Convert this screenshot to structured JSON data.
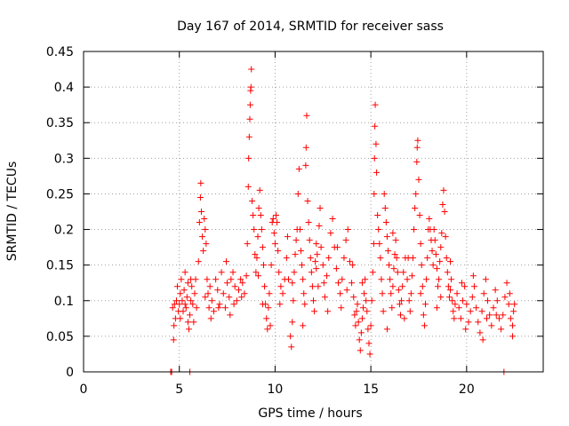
{
  "chart_data": {
    "type": "scatter",
    "title": "Day 167 of 2014, SRMTID for receiver sass",
    "xlabel": "GPS time / hours",
    "ylabel": "SRMTID / TECUs",
    "xlim": [
      0,
      24
    ],
    "ylim": [
      0,
      0.45
    ],
    "grid": true,
    "marker": "+",
    "color": "#ff0000",
    "x_ticks": [
      {
        "value": 0,
        "label": "0"
      },
      {
        "value": 5,
        "label": "5"
      },
      {
        "value": 10,
        "label": "10"
      },
      {
        "value": 15,
        "label": "15"
      },
      {
        "value": 20,
        "label": "20"
      }
    ],
    "y_ticks": [
      {
        "value": 0,
        "label": "0"
      },
      {
        "value": 0.05,
        "label": "0.05"
      },
      {
        "value": 0.1,
        "label": "0.1"
      },
      {
        "value": 0.15,
        "label": "0.15"
      },
      {
        "value": 0.2,
        "label": "0.2"
      },
      {
        "value": 0.25,
        "label": "0.25"
      },
      {
        "value": 0.3,
        "label": "0.3"
      },
      {
        "value": 0.35,
        "label": "0.35"
      },
      {
        "value": 0.4,
        "label": "0.4"
      },
      {
        "value": 0.45,
        "label": "0.45"
      }
    ],
    "points": [
      [
        4.55,
        0.0
      ],
      [
        4.6,
        0.0
      ],
      [
        5.55,
        0.0
      ],
      [
        21.95,
        0.0
      ],
      [
        4.65,
        0.09
      ],
      [
        4.7,
        0.045
      ],
      [
        4.72,
        0.065
      ],
      [
        4.75,
        0.095
      ],
      [
        4.8,
        0.075
      ],
      [
        4.85,
        0.1
      ],
      [
        4.9,
        0.12
      ],
      [
        4.95,
        0.085
      ],
      [
        5.0,
        0.095
      ],
      [
        5.05,
        0.11
      ],
      [
        5.1,
        0.13
      ],
      [
        5.15,
        0.1
      ],
      [
        5.2,
        0.085
      ],
      [
        5.25,
        0.115
      ],
      [
        5.3,
        0.14
      ],
      [
        5.35,
        0.09
      ],
      [
        5.4,
        0.105
      ],
      [
        5.45,
        0.125
      ],
      [
        5.5,
        0.06
      ],
      [
        5.55,
        0.08
      ],
      [
        5.6,
        0.1
      ],
      [
        5.65,
        0.12
      ],
      [
        5.7,
        0.095
      ],
      [
        5.75,
        0.07
      ],
      [
        5.8,
        0.11
      ],
      [
        5.85,
        0.13
      ],
      [
        5.9,
        0.09
      ],
      [
        6.0,
        0.155
      ],
      [
        6.05,
        0.21
      ],
      [
        6.1,
        0.245
      ],
      [
        6.12,
        0.265
      ],
      [
        6.15,
        0.225
      ],
      [
        6.2,
        0.19
      ],
      [
        6.25,
        0.17
      ],
      [
        6.3,
        0.215
      ],
      [
        6.35,
        0.2
      ],
      [
        6.4,
        0.18
      ],
      [
        6.45,
        0.13
      ],
      [
        6.5,
        0.11
      ],
      [
        6.55,
        0.09
      ],
      [
        6.6,
        0.12
      ],
      [
        6.7,
        0.1
      ],
      [
        6.8,
        0.085
      ],
      [
        6.9,
        0.13
      ],
      [
        7.0,
        0.115
      ],
      [
        7.1,
        0.095
      ],
      [
        7.2,
        0.14
      ],
      [
        7.3,
        0.11
      ],
      [
        7.4,
        0.09
      ],
      [
        7.5,
        0.125
      ],
      [
        7.6,
        0.105
      ],
      [
        7.7,
        0.13
      ],
      [
        7.8,
        0.14
      ],
      [
        7.9,
        0.12
      ],
      [
        8.0,
        0.1
      ],
      [
        8.1,
        0.115
      ],
      [
        8.2,
        0.13
      ],
      [
        8.3,
        0.125
      ],
      [
        8.4,
        0.11
      ],
      [
        8.5,
        0.135
      ],
      [
        8.55,
        0.18
      ],
      [
        8.6,
        0.26
      ],
      [
        8.62,
        0.3
      ],
      [
        8.65,
        0.33
      ],
      [
        8.68,
        0.355
      ],
      [
        8.7,
        0.375
      ],
      [
        8.72,
        0.395
      ],
      [
        8.74,
        0.4
      ],
      [
        8.76,
        0.425
      ],
      [
        8.8,
        0.24
      ],
      [
        8.85,
        0.22
      ],
      [
        8.9,
        0.2
      ],
      [
        8.95,
        0.165
      ],
      [
        9.0,
        0.14
      ],
      [
        9.05,
        0.16
      ],
      [
        9.1,
        0.19
      ],
      [
        9.15,
        0.23
      ],
      [
        9.2,
        0.255
      ],
      [
        9.25,
        0.22
      ],
      [
        9.3,
        0.2
      ],
      [
        9.35,
        0.175
      ],
      [
        9.4,
        0.15
      ],
      [
        9.45,
        0.12
      ],
      [
        9.5,
        0.095
      ],
      [
        9.55,
        0.075
      ],
      [
        9.6,
        0.06
      ],
      [
        9.65,
        0.09
      ],
      [
        9.7,
        0.11
      ],
      [
        9.8,
        0.15
      ],
      [
        9.85,
        0.21
      ],
      [
        9.9,
        0.215
      ],
      [
        9.95,
        0.195
      ],
      [
        10.0,
        0.18
      ],
      [
        10.05,
        0.22
      ],
      [
        10.1,
        0.21
      ],
      [
        10.15,
        0.17
      ],
      [
        10.2,
        0.14
      ],
      [
        10.3,
        0.12
      ],
      [
        10.4,
        0.11
      ],
      [
        10.5,
        0.13
      ],
      [
        10.6,
        0.16
      ],
      [
        10.7,
        0.13
      ],
      [
        10.8,
        0.05
      ],
      [
        10.85,
        0.035
      ],
      [
        10.9,
        0.07
      ],
      [
        10.95,
        0.1
      ],
      [
        11.0,
        0.14
      ],
      [
        11.05,
        0.165
      ],
      [
        11.1,
        0.185
      ],
      [
        11.15,
        0.2
      ],
      [
        11.2,
        0.25
      ],
      [
        11.25,
        0.285
      ],
      [
        11.3,
        0.2
      ],
      [
        11.35,
        0.17
      ],
      [
        11.4,
        0.15
      ],
      [
        11.45,
        0.13
      ],
      [
        11.5,
        0.11
      ],
      [
        11.55,
        0.095
      ],
      [
        11.6,
        0.29
      ],
      [
        11.62,
        0.315
      ],
      [
        11.65,
        0.36
      ],
      [
        11.7,
        0.24
      ],
      [
        11.75,
        0.21
      ],
      [
        11.8,
        0.185
      ],
      [
        11.85,
        0.16
      ],
      [
        11.9,
        0.14
      ],
      [
        11.95,
        0.12
      ],
      [
        12.0,
        0.1
      ],
      [
        12.05,
        0.085
      ],
      [
        12.1,
        0.155
      ],
      [
        12.15,
        0.18
      ],
      [
        12.2,
        0.165
      ],
      [
        12.3,
        0.205
      ],
      [
        12.35,
        0.23
      ],
      [
        12.4,
        0.175
      ],
      [
        12.5,
        0.15
      ],
      [
        12.55,
        0.125
      ],
      [
        12.6,
        0.105
      ],
      [
        12.7,
        0.135
      ],
      [
        12.8,
        0.16
      ],
      [
        12.9,
        0.195
      ],
      [
        13.0,
        0.215
      ],
      [
        13.1,
        0.175
      ],
      [
        13.2,
        0.145
      ],
      [
        13.3,
        0.125
      ],
      [
        13.4,
        0.11
      ],
      [
        13.5,
        0.13
      ],
      [
        13.6,
        0.16
      ],
      [
        13.7,
        0.185
      ],
      [
        13.8,
        0.2
      ],
      [
        13.9,
        0.155
      ],
      [
        14.0,
        0.125
      ],
      [
        14.1,
        0.105
      ],
      [
        14.15,
        0.08
      ],
      [
        14.2,
        0.065
      ],
      [
        14.25,
        0.085
      ],
      [
        14.3,
        0.095
      ],
      [
        14.35,
        0.07
      ],
      [
        14.4,
        0.045
      ],
      [
        14.45,
        0.03
      ],
      [
        14.5,
        0.055
      ],
      [
        14.55,
        0.075
      ],
      [
        14.6,
        0.09
      ],
      [
        14.65,
        0.11
      ],
      [
        14.7,
        0.13
      ],
      [
        14.75,
        0.1
      ],
      [
        14.8,
        0.085
      ],
      [
        14.85,
        0.06
      ],
      [
        14.9,
        0.04
      ],
      [
        14.95,
        0.025
      ],
      [
        15.0,
        0.065
      ],
      [
        15.05,
        0.1
      ],
      [
        15.1,
        0.14
      ],
      [
        15.15,
        0.18
      ],
      [
        15.17,
        0.25
      ],
      [
        15.19,
        0.3
      ],
      [
        15.21,
        0.345
      ],
      [
        15.23,
        0.375
      ],
      [
        15.27,
        0.32
      ],
      [
        15.3,
        0.28
      ],
      [
        15.35,
        0.22
      ],
      [
        15.4,
        0.2
      ],
      [
        15.45,
        0.18
      ],
      [
        15.5,
        0.16
      ],
      [
        15.55,
        0.13
      ],
      [
        15.6,
        0.11
      ],
      [
        15.7,
        0.25
      ],
      [
        15.75,
        0.23
      ],
      [
        15.8,
        0.21
      ],
      [
        15.85,
        0.19
      ],
      [
        15.9,
        0.17
      ],
      [
        15.95,
        0.15
      ],
      [
        16.0,
        0.13
      ],
      [
        16.05,
        0.11
      ],
      [
        16.1,
        0.09
      ],
      [
        16.15,
        0.12
      ],
      [
        16.2,
        0.145
      ],
      [
        16.25,
        0.165
      ],
      [
        16.3,
        0.185
      ],
      [
        16.35,
        0.16
      ],
      [
        16.4,
        0.14
      ],
      [
        16.45,
        0.115
      ],
      [
        16.5,
        0.095
      ],
      [
        16.55,
        0.08
      ],
      [
        16.6,
        0.1
      ],
      [
        16.65,
        0.12
      ],
      [
        16.7,
        0.14
      ],
      [
        16.8,
        0.16
      ],
      [
        16.9,
        0.13
      ],
      [
        17.0,
        0.1
      ],
      [
        17.05,
        0.085
      ],
      [
        17.1,
        0.11
      ],
      [
        17.15,
        0.135
      ],
      [
        17.2,
        0.16
      ],
      [
        17.25,
        0.2
      ],
      [
        17.3,
        0.23
      ],
      [
        17.35,
        0.25
      ],
      [
        17.4,
        0.295
      ],
      [
        17.42,
        0.315
      ],
      [
        17.45,
        0.325
      ],
      [
        17.5,
        0.27
      ],
      [
        17.55,
        0.22
      ],
      [
        17.6,
        0.18
      ],
      [
        17.65,
        0.15
      ],
      [
        17.7,
        0.12
      ],
      [
        17.75,
        0.08
      ],
      [
        17.8,
        0.065
      ],
      [
        17.85,
        0.095
      ],
      [
        17.9,
        0.13
      ],
      [
        17.95,
        0.16
      ],
      [
        18.0,
        0.2
      ],
      [
        18.05,
        0.215
      ],
      [
        18.1,
        0.2
      ],
      [
        18.15,
        0.185
      ],
      [
        18.2,
        0.17
      ],
      [
        18.25,
        0.15
      ],
      [
        18.3,
        0.2
      ],
      [
        18.35,
        0.185
      ],
      [
        18.4,
        0.165
      ],
      [
        18.45,
        0.145
      ],
      [
        18.5,
        0.12
      ],
      [
        18.55,
        0.13
      ],
      [
        18.6,
        0.155
      ],
      [
        18.65,
        0.175
      ],
      [
        18.7,
        0.195
      ],
      [
        18.75,
        0.235
      ],
      [
        18.8,
        0.255
      ],
      [
        18.85,
        0.225
      ],
      [
        18.9,
        0.19
      ],
      [
        18.95,
        0.16
      ],
      [
        19.0,
        0.14
      ],
      [
        19.05,
        0.12
      ],
      [
        19.1,
        0.105
      ],
      [
        19.15,
        0.115
      ],
      [
        19.2,
        0.13
      ],
      [
        19.25,
        0.1
      ],
      [
        19.3,
        0.085
      ],
      [
        19.35,
        0.075
      ],
      [
        19.4,
        0.095
      ],
      [
        19.5,
        0.11
      ],
      [
        19.6,
        0.09
      ],
      [
        19.7,
        0.075
      ],
      [
        19.8,
        0.1
      ],
      [
        19.9,
        0.12
      ],
      [
        20.0,
        0.095
      ],
      [
        20.1,
        0.07
      ],
      [
        20.2,
        0.085
      ],
      [
        20.3,
        0.105
      ],
      [
        20.4,
        0.12
      ],
      [
        20.5,
        0.09
      ],
      [
        20.6,
        0.07
      ],
      [
        20.7,
        0.055
      ],
      [
        20.8,
        0.085
      ],
      [
        20.9,
        0.11
      ],
      [
        21.0,
        0.13
      ],
      [
        21.1,
        0.1
      ],
      [
        21.2,
        0.08
      ],
      [
        21.3,
        0.065
      ],
      [
        21.4,
        0.09
      ],
      [
        21.5,
        0.115
      ],
      [
        21.6,
        0.1
      ],
      [
        21.7,
        0.075
      ],
      [
        21.8,
        0.06
      ],
      [
        21.9,
        0.08
      ],
      [
        22.0,
        0.105
      ],
      [
        22.1,
        0.125
      ],
      [
        22.2,
        0.095
      ],
      [
        22.3,
        0.075
      ],
      [
        22.4,
        0.065
      ],
      [
        22.45,
        0.085
      ],
      [
        22.5,
        0.095
      ],
      [
        5.05,
        0.075
      ],
      [
        5.3,
        0.095
      ],
      [
        5.6,
        0.13
      ],
      [
        6.65,
        0.075
      ],
      [
        7.05,
        0.09
      ],
      [
        7.45,
        0.155
      ],
      [
        7.85,
        0.095
      ],
      [
        8.25,
        0.105
      ],
      [
        9.12,
        0.135
      ],
      [
        9.75,
        0.065
      ],
      [
        10.25,
        0.095
      ],
      [
        10.65,
        0.19
      ],
      [
        11.45,
        0.065
      ],
      [
        12.25,
        0.12
      ],
      [
        12.75,
        0.085
      ],
      [
        13.25,
        0.175
      ],
      [
        13.75,
        0.115
      ],
      [
        14.05,
        0.15
      ],
      [
        14.55,
        0.125
      ],
      [
        15.65,
        0.085
      ],
      [
        16.15,
        0.195
      ],
      [
        16.75,
        0.075
      ],
      [
        17.6,
        0.11
      ],
      [
        18.45,
        0.09
      ],
      [
        19.15,
        0.155
      ],
      [
        19.75,
        0.125
      ],
      [
        20.35,
        0.135
      ],
      [
        21.05,
        0.075
      ],
      [
        21.55,
        0.08
      ],
      [
        22.25,
        0.11
      ],
      [
        22.4,
        0.05
      ],
      [
        20.85,
        0.045
      ],
      [
        19.95,
        0.06
      ],
      [
        18.65,
        0.105
      ],
      [
        16.95,
        0.16
      ],
      [
        15.85,
        0.06
      ],
      [
        13.45,
        0.09
      ],
      [
        12.15,
        0.145
      ],
      [
        10.9,
        0.125
      ],
      [
        9.35,
        0.095
      ],
      [
        7.65,
        0.08
      ],
      [
        6.35,
        0.105
      ],
      [
        5.45,
        0.07
      ]
    ]
  }
}
